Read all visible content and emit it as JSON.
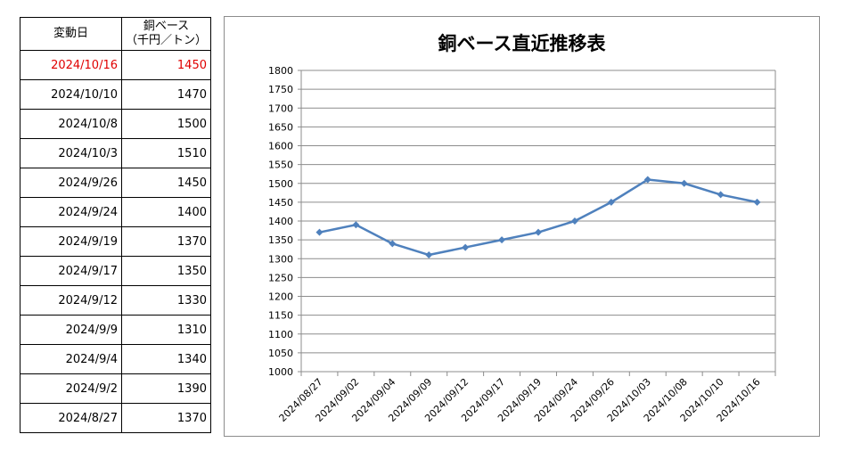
{
  "table": {
    "header": {
      "date": "変動日",
      "price": "銅ベース\n（千円／トン）"
    },
    "rows": [
      {
        "date": "2024/10/16",
        "price": "1450",
        "highlight": true
      },
      {
        "date": "2024/10/10",
        "price": "1470"
      },
      {
        "date": "2024/10/8",
        "price": "1500"
      },
      {
        "date": "2024/10/3",
        "price": "1510"
      },
      {
        "date": "2024/9/26",
        "price": "1450"
      },
      {
        "date": "2024/9/24",
        "price": "1400"
      },
      {
        "date": "2024/9/19",
        "price": "1370"
      },
      {
        "date": "2024/9/17",
        "price": "1350"
      },
      {
        "date": "2024/9/12",
        "price": "1330"
      },
      {
        "date": "2024/9/9",
        "price": "1310"
      },
      {
        "date": "2024/9/4",
        "price": "1340"
      },
      {
        "date": "2024/9/2",
        "price": "1390"
      },
      {
        "date": "2024/8/27",
        "price": "1370"
      }
    ],
    "highlight_color": "#e00000"
  },
  "chart_data": {
    "type": "line",
    "title": "銅ベース直近推移表",
    "xlabel": "",
    "ylabel": "",
    "categories": [
      "2024/08/27",
      "2024/09/02",
      "2024/09/04",
      "2024/09/09",
      "2024/09/12",
      "2024/09/17",
      "2024/09/19",
      "2024/09/24",
      "2024/09/26",
      "2024/10/03",
      "2024/10/08",
      "2024/10/10",
      "2024/10/16"
    ],
    "series": [
      {
        "values": [
          1370,
          1390,
          1340,
          1310,
          1330,
          1350,
          1370,
          1400,
          1450,
          1510,
          1500,
          1470,
          1450
        ],
        "color": "#4f81bd",
        "marker": "diamond"
      }
    ],
    "ylim": [
      1000,
      1800
    ],
    "ytick_step": 50,
    "grid": true,
    "legend": "none"
  }
}
